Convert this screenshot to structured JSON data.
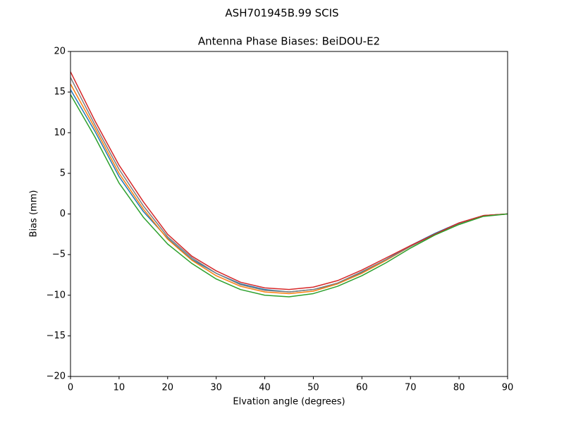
{
  "chart_data": {
    "type": "line",
    "suptitle": "ASH701945B.99   SCIS",
    "title": "Antenna Phase Biases: BeiDOU-E2",
    "x_label": "Elvation angle (degrees)",
    "y_label": "Bias (mm)",
    "x": [
      0,
      5,
      10,
      15,
      20,
      25,
      30,
      35,
      40,
      45,
      50,
      55,
      60,
      65,
      70,
      75,
      80,
      85,
      90
    ],
    "xlim": [
      0,
      90
    ],
    "xticks": [
      0,
      10,
      20,
      30,
      40,
      50,
      60,
      70,
      80,
      90
    ],
    "ylim": [
      -20,
      20
    ],
    "yticks": [
      {
        "value": -20,
        "label": "−20"
      },
      {
        "value": -15,
        "label": "−15"
      },
      {
        "value": -10,
        "label": "−10"
      },
      {
        "value": -5,
        "label": "−5"
      },
      0,
      5,
      10,
      15,
      20
    ],
    "grid": false,
    "series": [
      {
        "color": "#1f77b4",
        "values": [
          15.3,
          10.2,
          4.6,
          0.3,
          -3.0,
          -5.6,
          -7.3,
          -8.6,
          -9.3,
          -9.6,
          -9.3,
          -8.6,
          -7.2,
          -5.6,
          -3.9,
          -2.4,
          -1.1,
          -0.2,
          0
        ]
      },
      {
        "color": "#ff7f0e",
        "values": [
          16.0,
          10.6,
          5.0,
          0.6,
          -3.1,
          -5.7,
          -7.6,
          -8.9,
          -9.6,
          -9.8,
          -9.5,
          -8.6,
          -7.3,
          -5.7,
          -4.0,
          -2.5,
          -1.2,
          -0.2,
          0
        ]
      },
      {
        "color": "#7f7f7f",
        "values": [
          16.8,
          11.0,
          5.5,
          1.0,
          -2.8,
          -5.4,
          -7.3,
          -8.7,
          -9.4,
          -9.6,
          -9.3,
          -8.5,
          -7.1,
          -5.6,
          -4.0,
          -2.5,
          -1.2,
          -0.2,
          0
        ]
      },
      {
        "color": "#d62728",
        "values": [
          17.5,
          11.5,
          6.0,
          1.5,
          -2.5,
          -5.2,
          -7.0,
          -8.4,
          -9.1,
          -9.3,
          -9.0,
          -8.2,
          -6.9,
          -5.4,
          -3.9,
          -2.5,
          -1.1,
          -0.2,
          0
        ]
      },
      {
        "color": "#2ca02c",
        "values": [
          14.7,
          9.5,
          3.8,
          -0.4,
          -3.7,
          -6.1,
          -8.0,
          -9.3,
          -10.0,
          -10.2,
          -9.8,
          -8.9,
          -7.6,
          -6.0,
          -4.2,
          -2.6,
          -1.3,
          -0.3,
          0
        ]
      }
    ]
  }
}
